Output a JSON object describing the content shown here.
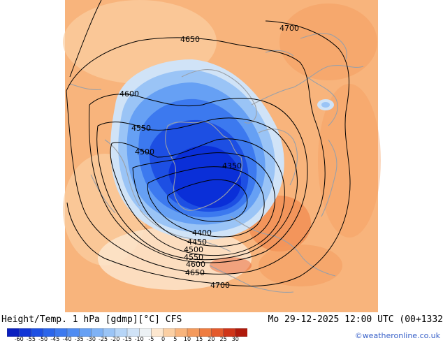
{
  "map": {
    "contour_labels": [
      {
        "value": "4700",
        "name": "contour-label-4700-top"
      },
      {
        "value": "4650",
        "name": "contour-label-4650-top"
      },
      {
        "value": "4600",
        "name": "contour-label-4600-left"
      },
      {
        "value": "4550",
        "name": "contour-label-4550-left"
      },
      {
        "value": "4500",
        "name": "contour-label-4500-left"
      },
      {
        "value": "4350",
        "name": "contour-label-4350"
      },
      {
        "value": "4400",
        "name": "contour-label-4400-bottom"
      },
      {
        "value": "4450",
        "name": "contour-label-4450-bottom"
      },
      {
        "value": "4500",
        "name": "contour-label-4500-bottom"
      },
      {
        "value": "4550",
        "name": "contour-label-4550-bottom"
      },
      {
        "value": "4600",
        "name": "contour-label-4600-bottom"
      },
      {
        "value": "4650",
        "name": "contour-label-4650-bottom"
      },
      {
        "value": "4700",
        "name": "contour-label-4700-bottom"
      }
    ]
  },
  "footer": {
    "title": "Height/Temp. 1 hPa [gdmp][°C] CFS",
    "date": "Mo 29-12-2025 12:00 UTC (00+1332",
    "credit": "©weatheronline.co.uk"
  },
  "colorbar": {
    "labels": [
      "-60",
      "-55",
      "-50",
      "-45",
      "-40",
      "-35",
      "-30",
      "-25",
      "-20",
      "-15",
      "-10",
      "-5",
      "0",
      "5",
      "10",
      "15",
      "20",
      "25",
      "30"
    ],
    "colors": [
      "#0a1fbf",
      "#1236d6",
      "#1d4fe3",
      "#2b65ea",
      "#3c79ef",
      "#4f8cf2",
      "#66a0f4",
      "#7fb2f5",
      "#9ac4f6",
      "#b6d5f7",
      "#d0e3f7",
      "#ecf1f4",
      "#fde7cf",
      "#fbcfa3",
      "#f8b47c",
      "#f49a5c",
      "#ef7c40",
      "#e45a2c",
      "#cf3519",
      "#b01a0c"
    ]
  }
}
